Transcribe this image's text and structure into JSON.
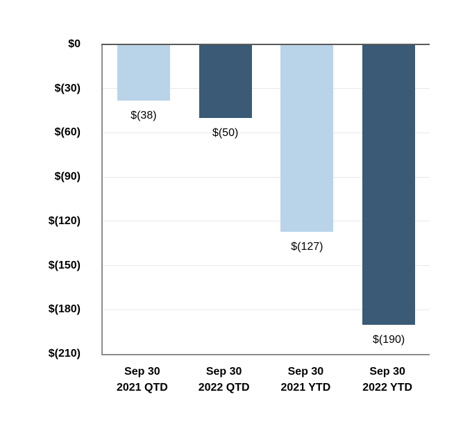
{
  "chart_data": {
    "type": "bar",
    "title": "",
    "xlabel": "",
    "ylabel": "",
    "categories": [
      [
        "Sep 30",
        "2021 QTD"
      ],
      [
        "Sep 30",
        "2022 QTD"
      ],
      [
        "Sep 30",
        "2021 YTD"
      ],
      [
        "Sep 30",
        "2022 YTD"
      ]
    ],
    "values": [
      -38,
      -50,
      -127,
      -190
    ],
    "data_labels": [
      "$(38)",
      "$(50)",
      "$(127)",
      "$(190)"
    ],
    "bar_colors": [
      "#B9D4E8",
      "#3A5A76",
      "#B9D4E8",
      "#3A5A76"
    ],
    "y_ticks": [
      {
        "label": "$0",
        "value": 0
      },
      {
        "label": "$(30)",
        "value": -30
      },
      {
        "label": "$(60)",
        "value": -60
      },
      {
        "label": "$(90)",
        "value": -90
      },
      {
        "label": "$(120)",
        "value": -120
      },
      {
        "label": "$(150)",
        "value": -150
      },
      {
        "label": "$(180)",
        "value": -180
      },
      {
        "label": "$(210)",
        "value": -210
      }
    ],
    "ylim": [
      -210,
      0
    ],
    "grid": "horizontal",
    "legend": "none",
    "colors": {
      "light_series": "#B9D4E8",
      "dark_series": "#3A5A76",
      "zero_line": "#595959",
      "axis_line": "#8C8C8C",
      "gridline": "#E8E8E8",
      "background": "#FFFFFF",
      "text": "#000000"
    }
  }
}
